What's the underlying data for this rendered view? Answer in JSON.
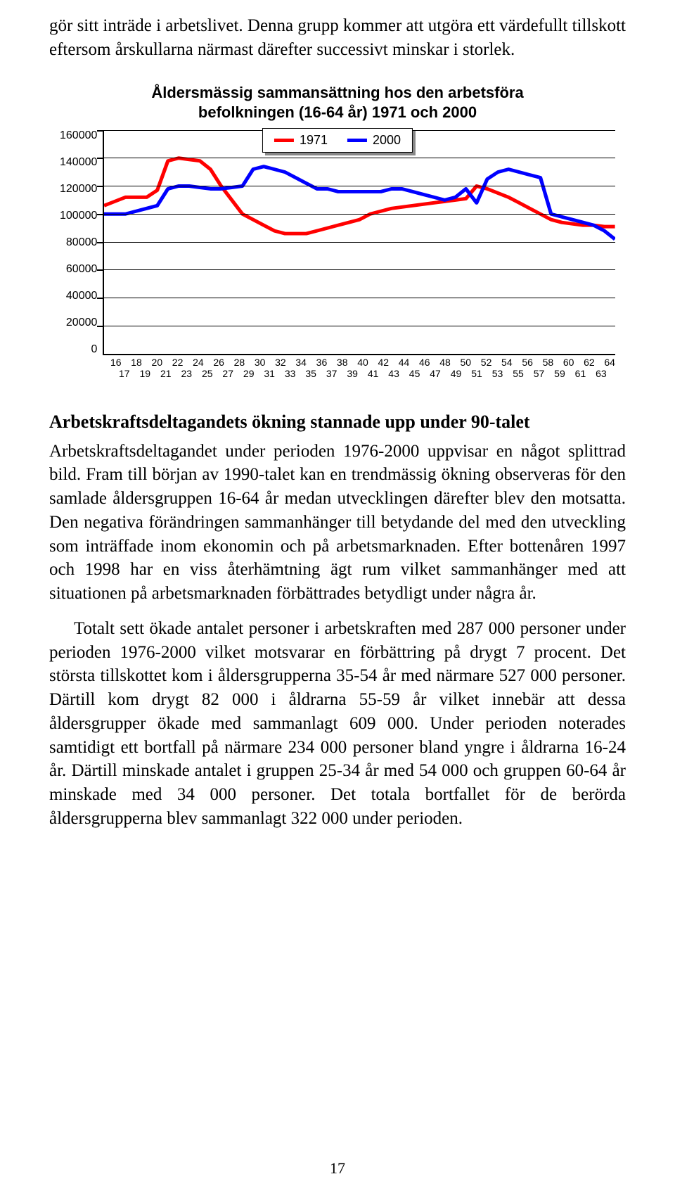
{
  "intro_paragraph": "gör sitt inträde i arbetslivet. Denna grupp kommer att utgöra ett värdefullt tillskott eftersom årskullarna närmast därefter successivt minskar i storlek.",
  "chart": {
    "type": "line",
    "title_line1": "Åldersmässig sammansättning hos den arbetsföra",
    "title_line2": "befolkningen (16-64 år) 1971 och 2000",
    "title_fontsize": 22,
    "title_fontfamily": "Arial",
    "background_color": "#ffffff",
    "grid_color": "#000000",
    "ylim": [
      0,
      160000
    ],
    "ytick_step": 20000,
    "ytick_labels": [
      "160000",
      "140000",
      "120000",
      "100000",
      "80000",
      "60000",
      "40000",
      "20000",
      "0"
    ],
    "x_ticks_top": [
      "16",
      "18",
      "20",
      "22",
      "24",
      "26",
      "28",
      "30",
      "32",
      "34",
      "36",
      "38",
      "40",
      "42",
      "44",
      "46",
      "48",
      "50",
      "52",
      "54",
      "56",
      "58",
      "60",
      "62",
      "64"
    ],
    "x_ticks_bottom": [
      "17",
      "19",
      "21",
      "23",
      "25",
      "27",
      "29",
      "31",
      "33",
      "35",
      "37",
      "39",
      "41",
      "43",
      "45",
      "47",
      "49",
      "51",
      "53",
      "55",
      "57",
      "59",
      "61",
      "63"
    ],
    "legend": [
      {
        "label": "1971",
        "color": "#ff0000"
      },
      {
        "label": "2000",
        "color": "#0000ff"
      }
    ],
    "line_width": 5,
    "series": {
      "1971": {
        "color": "#ff0000",
        "values": [
          106000,
          109000,
          112000,
          112000,
          112000,
          117000,
          138000,
          140000,
          139000,
          138000,
          132000,
          120000,
          110000,
          100000,
          96000,
          92000,
          88000,
          86000,
          86000,
          86000,
          88000,
          90000,
          92000,
          94000,
          96000,
          100000,
          102000,
          104000,
          105000,
          106000,
          107000,
          108000,
          109000,
          110000,
          111000,
          120000,
          118000,
          115000,
          112000,
          108000,
          104000,
          100000,
          96000,
          94000,
          93000,
          92000,
          92000,
          91000,
          91000
        ]
      },
      "2000": {
        "color": "#0000ff",
        "values": [
          100000,
          100000,
          100000,
          102000,
          104000,
          106000,
          118000,
          120000,
          120000,
          119000,
          118000,
          118000,
          119000,
          120000,
          132000,
          134000,
          132000,
          130000,
          126000,
          122000,
          118000,
          118000,
          116000,
          116000,
          116000,
          116000,
          116000,
          118000,
          118000,
          116000,
          114000,
          112000,
          110000,
          112000,
          118000,
          108000,
          125000,
          130000,
          132000,
          130000,
          128000,
          126000,
          100000,
          98000,
          96000,
          94000,
          92000,
          88000,
          82000
        ]
      }
    }
  },
  "section_heading": "Arbetskraftsdeltagandets ökning stannade upp under 90-talet",
  "paragraph_1": "Arbetskraftsdeltagandet under perioden 1976-2000 uppvisar en något splittrad bild. Fram till början av 1990-talet kan en trendmässig ökning observeras för den samlade åldersgruppen 16-64 år medan utvecklingen därefter blev den motsatta. Den negativa förändringen sammanhänger till betydande del med den utveckling som inträffade inom ekonomin och på arbetsmarknaden. Efter bottenåren 1997 och 1998 har en viss återhämtning ägt rum vilket sammanhänger med att situationen på arbetsmarknaden förbättrades betydligt under några år.",
  "paragraph_2": "Totalt sett ökade antalet personer i arbetskraften med 287 000 personer under perioden 1976-2000 vilket motsvarar en förbättring på drygt 7 procent. Det största tillskottet kom i åldersgrupperna 35-54 år med närmare 527 000 personer. Därtill kom drygt 82 000 i åldrarna 55-59 år vilket innebär att dessa åldersgrupper ökade med sammanlagt 609 000. Under perioden noterades samtidigt ett bortfall på närmare 234 000 personer bland yngre i åldrarna 16-24 år. Därtill minskade antalet i gruppen 25-34 år med 54 000 och gruppen 60-64 år minskade med 34 000 personer. Det totala bortfallet för de berörda åldersgrupperna blev sammanlagt 322 000 under perioden.",
  "page_number": "17"
}
